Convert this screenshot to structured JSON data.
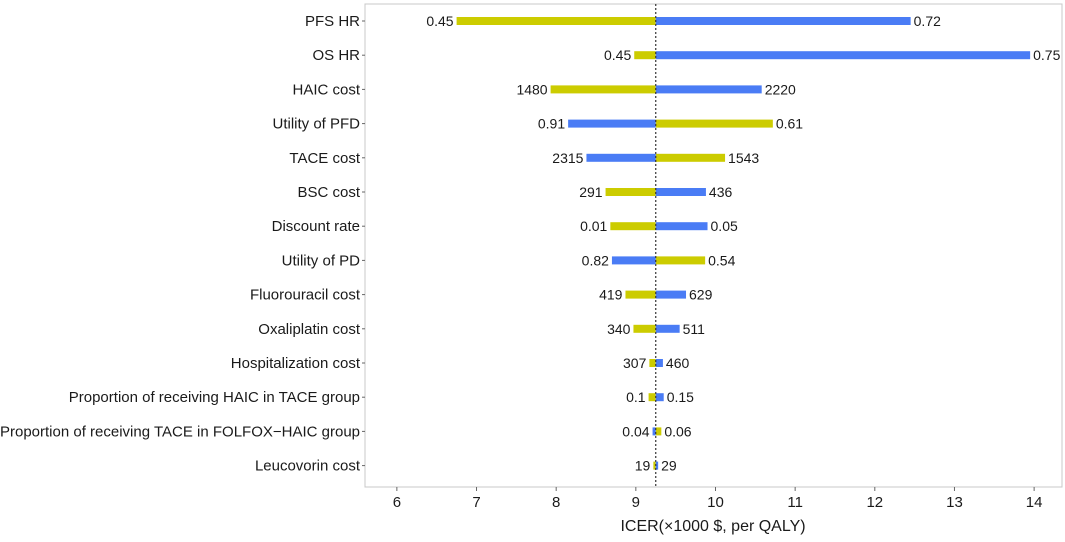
{
  "chart_data": {
    "type": "tornado",
    "xlabel": "ICER(×1000 $, per QALY)",
    "xlim": [
      5.6,
      14.35
    ],
    "xticks": [
      6,
      7,
      8,
      9,
      10,
      11,
      12,
      13,
      14
    ],
    "baseline": 9.25,
    "colors": {
      "low": "#cccc00",
      "high": "#4a7cf5",
      "baseline": "#333333",
      "frame": "#c8c8c8"
    },
    "rows": [
      {
        "label": "PFS HR",
        "low_value": 6.75,
        "low_label": "0.45",
        "high_value": 12.45,
        "high_label": "0.72"
      },
      {
        "label": "OS HR",
        "low_value": 8.98,
        "low_label": "0.45",
        "high_value": 13.95,
        "high_label": "0.75"
      },
      {
        "label": "HAIC cost",
        "low_value": 7.93,
        "low_label": "1480",
        "high_value": 10.58,
        "high_label": "2220"
      },
      {
        "label": "Utility of PFD",
        "low_value": 10.72,
        "low_label": "0.61",
        "high_value": 8.15,
        "high_label": "0.91"
      },
      {
        "label": "TACE cost",
        "low_value": 10.12,
        "low_label": "1543",
        "high_value": 8.38,
        "high_label": "2315"
      },
      {
        "label": "BSC cost",
        "low_value": 8.62,
        "low_label": "291",
        "high_value": 9.88,
        "high_label": "436"
      },
      {
        "label": "Discount rate",
        "low_value": 8.68,
        "low_label": "0.01",
        "high_value": 9.9,
        "high_label": "0.05"
      },
      {
        "label": "Utility of PD",
        "low_value": 9.87,
        "low_label": "0.54",
        "high_value": 8.7,
        "high_label": "0.82"
      },
      {
        "label": "Fluorouracil cost",
        "low_value": 8.87,
        "low_label": "419",
        "high_value": 9.63,
        "high_label": "629"
      },
      {
        "label": "Oxaliplatin cost",
        "low_value": 8.97,
        "low_label": "340",
        "high_value": 9.55,
        "high_label": "511"
      },
      {
        "label": "Hospitalization cost",
        "low_value": 9.17,
        "low_label": "307",
        "high_value": 9.34,
        "high_label": "460"
      },
      {
        "label": "Proportion of receiving HAIC in TACE group",
        "low_value": 9.16,
        "low_label": "0.1",
        "high_value": 9.35,
        "high_label": "0.15"
      },
      {
        "label": "Proportion of receiving TACE in FOLFOX−HAIC group",
        "low_value": 9.32,
        "low_label": "0.06",
        "high_value": 9.21,
        "high_label": "0.04"
      },
      {
        "label": "Leucovorin cost",
        "low_value": 9.22,
        "low_label": "19",
        "high_value": 9.28,
        "high_label": "29"
      }
    ]
  }
}
